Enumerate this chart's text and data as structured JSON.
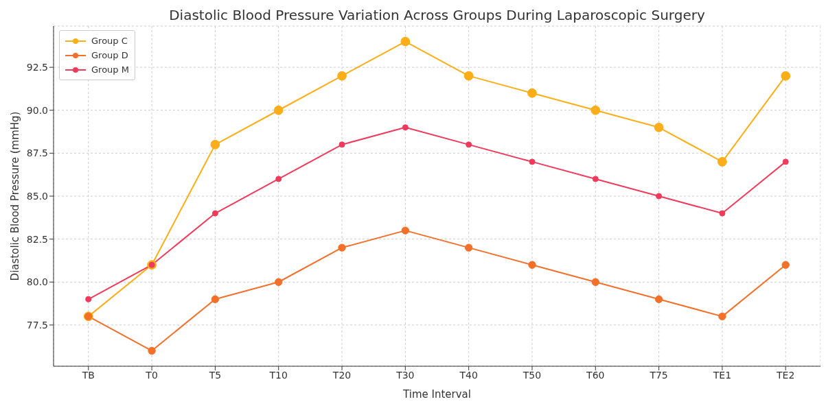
{
  "chart_data": {
    "type": "line",
    "title": "Diastolic Blood Pressure Variation Across Groups During Laparoscopic Surgery",
    "xlabel": "Time Interval",
    "ylabel": "Diastolic Blood Pressure (mmHg)",
    "categories": [
      "TB",
      "T0",
      "T5",
      "T10",
      "T20",
      "T30",
      "T40",
      "T50",
      "T60",
      "T75",
      "TE1",
      "TE2"
    ],
    "series": [
      {
        "name": "Group C",
        "color": "#fbae17",
        "values": [
          78,
          81,
          88,
          90,
          92,
          94,
          92,
          91,
          90,
          89,
          87,
          92
        ]
      },
      {
        "name": "Group D",
        "color": "#f36f2a",
        "values": [
          78,
          76,
          79,
          80,
          82,
          83,
          82,
          81,
          80,
          79,
          78,
          81
        ]
      },
      {
        "name": "Group M",
        "color": "#f13a5b",
        "values": [
          79,
          81,
          84,
          86,
          88,
          89,
          88,
          87,
          86,
          85,
          84,
          87
        ]
      }
    ],
    "ylim": [
      75.1,
      94.9
    ],
    "yticks": [
      {
        "value": 77.5,
        "label": "77.5"
      },
      {
        "value": 80,
        "label": "80.0"
      },
      {
        "value": 82.5,
        "label": "82.5"
      },
      {
        "value": 85,
        "label": "85.0"
      },
      {
        "value": 87.5,
        "label": "87.5"
      },
      {
        "value": 90,
        "label": "90.0"
      },
      {
        "value": 92.5,
        "label": "92.5"
      }
    ],
    "grid": true,
    "legend": "top left",
    "marker": "circle",
    "line_style": "solid"
  }
}
